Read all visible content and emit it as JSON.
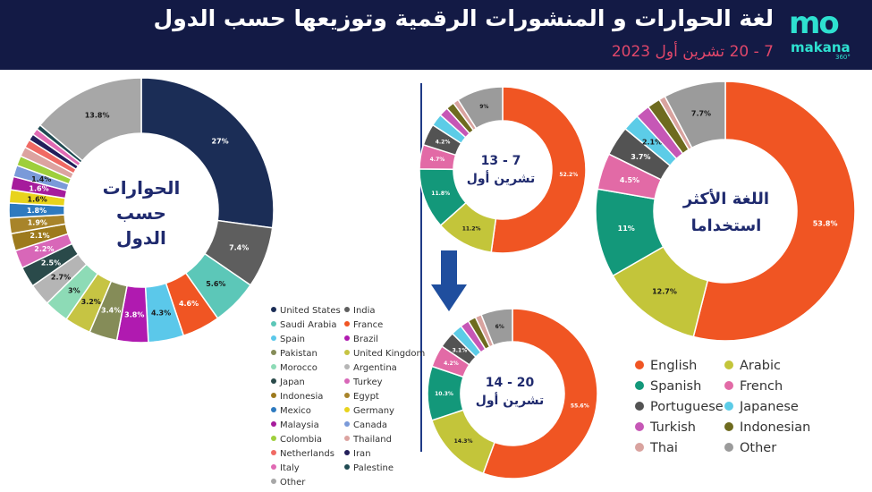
{
  "header": {
    "title": "لغة الحوارات و المنشورات الرقمية وتوزيعها حسب الدول",
    "subtitle": "7 - 20 تشرين أول 2023",
    "logo_mark": "mo",
    "logo_text": "makana",
    "logo_sup": "360°"
  },
  "chart_data": [
    {
      "type": "pie",
      "id": "countries",
      "center_label": "الحوارات\nحسب\nالدول",
      "labels": [
        "United States",
        "India",
        "Saudi Arabia",
        "France",
        "Spain",
        "Brazil",
        "Pakistan",
        "United Kingdom",
        "Morocco",
        "Argentina",
        "Japan",
        "Turkey",
        "Indonesia",
        "Egypt",
        "Mexico",
        "Germany",
        "Malaysia",
        "Canada",
        "Colombia",
        "Thailand",
        "Netherlands",
        "Iran",
        "Italy",
        "Palestine",
        "Other"
      ],
      "values": [
        27,
        7.4,
        5.6,
        4.6,
        4.3,
        3.8,
        3.4,
        3.2,
        3,
        2.7,
        2.5,
        2.2,
        2.1,
        1.9,
        1.8,
        1.6,
        1.6,
        1.4,
        1.2,
        1.2,
        1.0,
        0.8,
        0.8,
        0.6,
        13.8
      ],
      "data_labels": [
        "27%",
        "7.4%",
        "5.6%",
        "4.6%",
        "4.3%",
        "3.8%",
        "3.4%",
        "3.2%",
        "3%",
        "2.7%",
        "2.5%",
        "2.2%",
        "2.1%",
        "1.9%",
        "1.8%",
        "1.6%",
        "1.6%",
        "1.4%",
        "",
        "",
        "",
        "",
        "",
        "",
        "13.8%"
      ],
      "colors": [
        "#1b2d56",
        "#5e5e5e",
        "#5cc7b8",
        "#f05523",
        "#5bc8ea",
        "#b01ab0",
        "#858c58",
        "#c6c443",
        "#8ddbb6",
        "#b5b5b5",
        "#2a4a4a",
        "#d867b8",
        "#9d7a1d",
        "#a8842a",
        "#2e7abf",
        "#e8d31c",
        "#a61c9c",
        "#7a9ad9",
        "#9ecf3c",
        "#dca3a0",
        "#f06a64",
        "#221e5a",
        "#e06ab3",
        "#1f4a52",
        "#a7a7a7"
      ]
    },
    {
      "type": "pie",
      "id": "languages_total",
      "center_label": "اللغة الأكثر\nاستخداما",
      "labels": [
        "English",
        "Arabic",
        "Spanish",
        "French",
        "Portuguese",
        "Japanese",
        "Turkish",
        "Indonesian",
        "Thai",
        "Other"
      ],
      "values": [
        53.8,
        12.7,
        11,
        4.5,
        3.7,
        2.1,
        1.8,
        1.6,
        0.8,
        7.7
      ],
      "data_labels": [
        "53.8%",
        "12.7%",
        "11%",
        "4.5%",
        "3.7%",
        "2.1%",
        "",
        "",
        "",
        "7.7%"
      ],
      "colors": [
        "#f05523",
        "#c3c53a",
        "#13987a",
        "#e26aa6",
        "#535353",
        "#5ccce7",
        "#c657b6",
        "#6e6b1f",
        "#d9a39f",
        "#9b9b9b"
      ]
    },
    {
      "type": "pie",
      "id": "languages_week1",
      "center_label": "7 - 13\nتشرين أول",
      "labels": [
        "English",
        "Arabic",
        "Spanish",
        "French",
        "Portuguese",
        "Japanese",
        "Turkish",
        "Indonesian",
        "Thai",
        "Other"
      ],
      "values": [
        52.2,
        11.2,
        11.8,
        4.7,
        4.2,
        2.4,
        1.8,
        1.6,
        1.1,
        9
      ],
      "data_labels": [
        "52.2%",
        "11.2%",
        "11.8%",
        "4.7%",
        "4.2%",
        "",
        "",
        "",
        "",
        "9%"
      ],
      "colors": [
        "#f05523",
        "#c3c53a",
        "#13987a",
        "#e26aa6",
        "#535353",
        "#5ccce7",
        "#c657b6",
        "#6e6b1f",
        "#d9a39f",
        "#9b9b9b"
      ]
    },
    {
      "type": "pie",
      "id": "languages_week2",
      "center_label": "20 - 14\nتشرين أول",
      "labels": [
        "English",
        "Arabic",
        "Spanish",
        "French",
        "Portuguese",
        "Japanese",
        "Turkish",
        "Indonesian",
        "Thai",
        "Other"
      ],
      "values": [
        55.6,
        14.3,
        10.3,
        4.2,
        3.1,
        2.1,
        1.7,
        1.5,
        1.2,
        6
      ],
      "data_labels": [
        "55.6%",
        "14.3%",
        "10.3%",
        "4.2%",
        "3.1%",
        "",
        "",
        "",
        "",
        "6%"
      ],
      "colors": [
        "#f05523",
        "#c3c53a",
        "#13987a",
        "#e26aa6",
        "#535353",
        "#5ccce7",
        "#c657b6",
        "#6e6b1f",
        "#d9a39f",
        "#9b9b9b"
      ]
    }
  ]
}
